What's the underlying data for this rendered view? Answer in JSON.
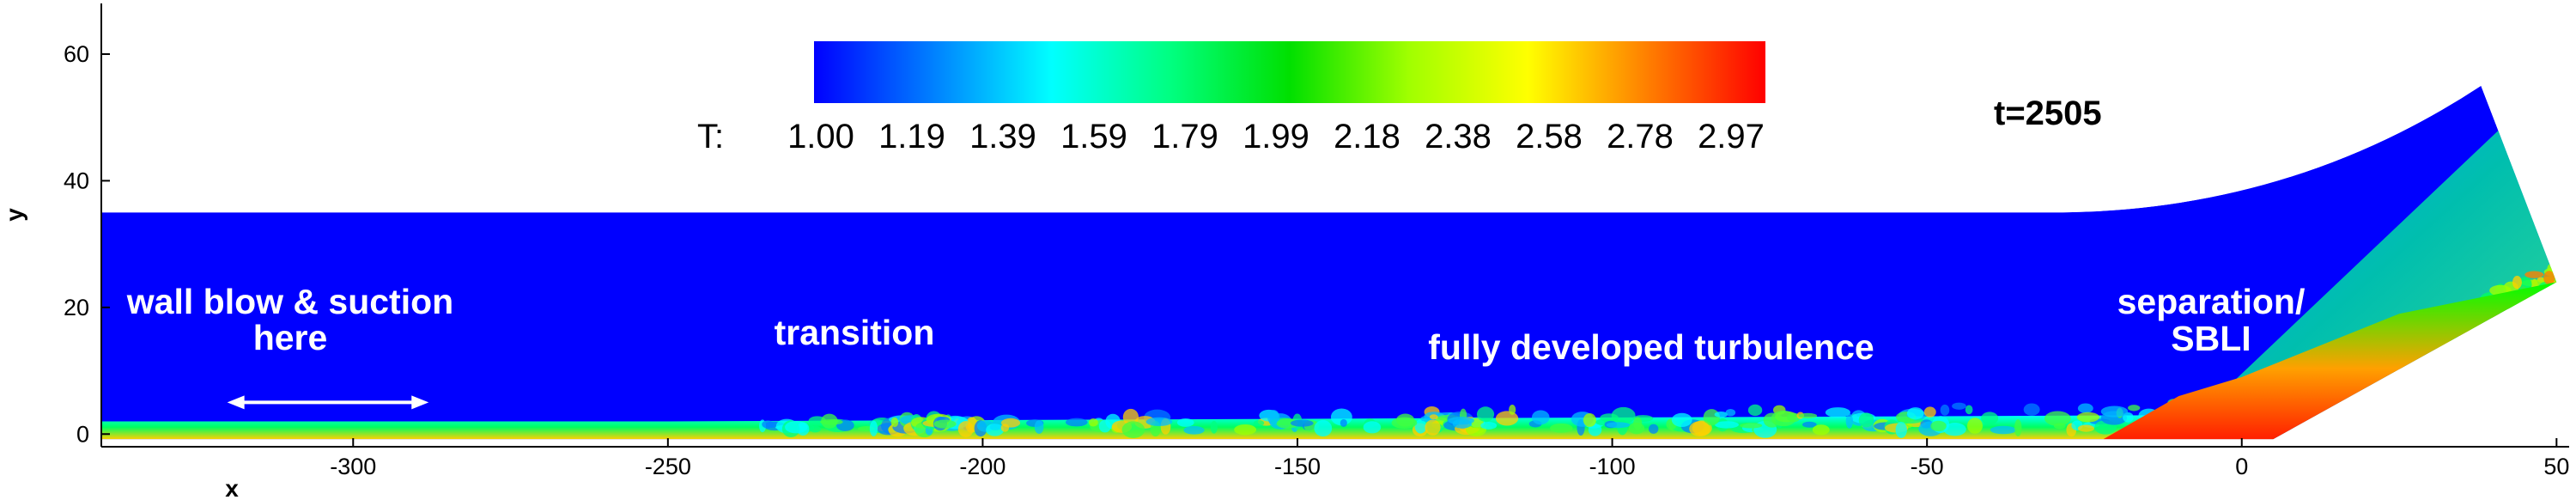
{
  "chart_data": {
    "type": "heatmap",
    "title": "",
    "xlabel": "x",
    "ylabel": "y",
    "xlim": [
      -340,
      52
    ],
    "ylim": [
      -2,
      68
    ],
    "x_ticks": [
      -300,
      -250,
      -200,
      -150,
      -100,
      -50,
      0,
      50
    ],
    "y_ticks": [
      0,
      20,
      40,
      60
    ],
    "variable": "T",
    "colorbar": {
      "label": "T:",
      "min": 1.0,
      "max": 2.97,
      "ticks": [
        "1.00",
        "1.19",
        "1.39",
        "1.59",
        "1.79",
        "1.99",
        "2.18",
        "2.38",
        "2.58",
        "2.78",
        "2.97"
      ],
      "colors": [
        "#0000ff",
        "#0080ff",
        "#00ffff",
        "#00ff80",
        "#00e000",
        "#a0ff00",
        "#ffff00",
        "#ff8000",
        "#ff0000"
      ]
    },
    "time_label": "t=2505",
    "domain": {
      "upstream_top_y": 35,
      "ramp_start_x": -30,
      "top_right": [
        38,
        55
      ],
      "corner_right": [
        50,
        24
      ],
      "ramp_corner_x": 5
    },
    "annotations": [
      {
        "text_lines": [
          "wall blow & suction",
          "here"
        ],
        "x": -300,
        "y": 23
      },
      {
        "text": "transition",
        "x": -210,
        "y": 16
      },
      {
        "text": "fully developed turbulence",
        "x": -110,
        "y": 12
      },
      {
        "text_lines": [
          "separation/",
          "SBLI"
        ],
        "x": 8,
        "y": 21
      }
    ],
    "arrow": {
      "x_from": -320,
      "x_to": -288,
      "y": 5
    }
  },
  "colors": {
    "background": "#ffffff",
    "freestream": "#0000ff",
    "axis": "#000000",
    "annotation": "#ffffff"
  }
}
